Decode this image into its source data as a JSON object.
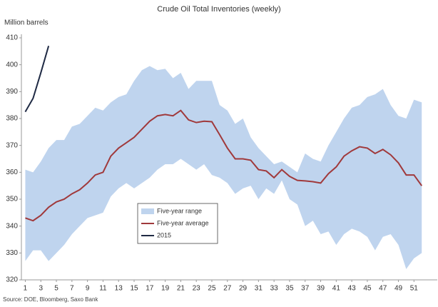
{
  "chart_data": {
    "type": "line",
    "title": "Crude Oil  Total Inventories (weekly)",
    "y_label": "Million barrels",
    "source": "Source: DOE, Bloomberg, Saxo Bank",
    "x": [
      1,
      2,
      3,
      4,
      5,
      6,
      7,
      8,
      9,
      10,
      11,
      12,
      13,
      14,
      15,
      16,
      17,
      18,
      19,
      20,
      21,
      22,
      23,
      24,
      25,
      26,
      27,
      28,
      29,
      30,
      31,
      32,
      33,
      34,
      35,
      36,
      37,
      38,
      39,
      40,
      41,
      42,
      43,
      44,
      45,
      46,
      47,
      48,
      49,
      50,
      51,
      52
    ],
    "xlim": [
      0.5,
      54
    ],
    "xticks": [
      1,
      3,
      5,
      7,
      9,
      11,
      13,
      15,
      17,
      19,
      21,
      23,
      25,
      27,
      29,
      31,
      33,
      35,
      37,
      39,
      41,
      43,
      45,
      47,
      49,
      51
    ],
    "ylim": [
      320,
      410
    ],
    "yticks": [
      320,
      330,
      340,
      350,
      360,
      370,
      380,
      390,
      400,
      410
    ],
    "grid": false,
    "legend": "lower-left",
    "series": [
      {
        "name": "Five-year range",
        "color": "#bfd4ee",
        "kind": "band",
        "upper": [
          361,
          360,
          364,
          369,
          372,
          372,
          377,
          378,
          381,
          384,
          383,
          386,
          388,
          389,
          394,
          398,
          399.5,
          398,
          398.5,
          395,
          397,
          391,
          394,
          394,
          394,
          385,
          383,
          378,
          380,
          373,
          369,
          366,
          363,
          364,
          362,
          360,
          367,
          365,
          364,
          370,
          375,
          380,
          384,
          385,
          388,
          389,
          391,
          385,
          381,
          380,
          387,
          386
        ],
        "lower": [
          327,
          331,
          331,
          327,
          330,
          333,
          337,
          340,
          343,
          344,
          345,
          351,
          354,
          356,
          354,
          356,
          358,
          361,
          363,
          363,
          365,
          363,
          361,
          363,
          359,
          358,
          356,
          352,
          354,
          355,
          350,
          354,
          352,
          357,
          350,
          348,
          340,
          342,
          337,
          338,
          333,
          337,
          339,
          338,
          336,
          331,
          336,
          337,
          333,
          324,
          328,
          330
        ]
      },
      {
        "name": "Five-year average",
        "color": "#a0393b",
        "values": [
          343,
          342,
          344,
          347,
          349,
          350,
          352,
          353.5,
          356,
          359,
          360,
          366,
          369,
          371,
          373,
          376,
          379,
          381,
          381.5,
          381,
          383,
          379.5,
          378.5,
          379,
          378.8,
          374,
          369,
          365,
          365,
          364.5,
          361,
          360.5,
          358,
          361,
          358.5,
          357,
          356.8,
          356.5,
          356,
          359.5,
          362,
          366,
          368,
          369.5,
          369,
          367,
          368.5,
          366.5,
          363.5,
          359,
          359,
          355
        ]
      },
      {
        "name": "2015",
        "color": "#1f2a44",
        "values": [
          382.5,
          387.5,
          397,
          407,
          null,
          null,
          null,
          null,
          null,
          null,
          null,
          null,
          null,
          null,
          null,
          null,
          null,
          null,
          null,
          null,
          null,
          null,
          null,
          null,
          null,
          null,
          null,
          null,
          null,
          null,
          null,
          null,
          null,
          null,
          null,
          null,
          null,
          null,
          null,
          null,
          null,
          null,
          null,
          null,
          null,
          null,
          null,
          null,
          null,
          null,
          null,
          null
        ]
      }
    ]
  }
}
